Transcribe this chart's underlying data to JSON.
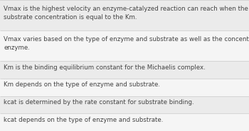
{
  "rows": [
    "Vmax is the highest velocity an enzyme-catalyzed reaction can reach when the\nsubstrate concentration is equal to the Km.",
    "Vmax varies based on the type of enzyme and substrate as well as the concentration of\nenzyme.",
    "Km is the binding equilibrium constant for the Michaelis complex.",
    "Km depends on the type of enzyme and substrate.",
    "kcat is determined by the rate constant for substrate binding.",
    "kcat depends on the type of enzyme and substrate."
  ],
  "row_colors": [
    "#ebebeb",
    "#f5f5f5",
    "#ebebeb",
    "#f5f5f5",
    "#ebebeb",
    "#f5f5f5"
  ],
  "text_color": "#444444",
  "border_color": "#d0d0d0",
  "font_size": 6.2,
  "bg_color": "#f5f5f5",
  "fig_width": 3.5,
  "fig_height": 1.85,
  "dpi": 100
}
